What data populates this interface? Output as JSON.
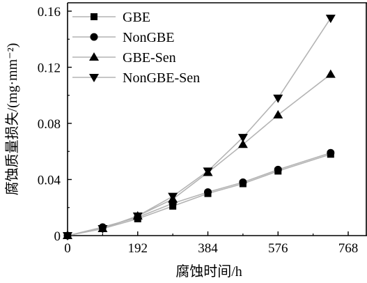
{
  "chart_data": {
    "type": "line",
    "title": "",
    "xlabel": "腐蚀时间/h",
    "ylabel": "腐蚀质量损失/(mg·mm⁻²)",
    "xlim": [
      0,
      768
    ],
    "ylim": [
      0,
      0.16
    ],
    "xticks": [
      0,
      192,
      384,
      576,
      768
    ],
    "xtick_labels": [
      "0",
      "192",
      "384",
      "576",
      "768"
    ],
    "yticks": [
      0,
      0.04,
      0.08,
      0.12,
      0.16
    ],
    "ytick_labels": [
      "0",
      "0.04",
      "0.08",
      "0.12",
      "0.16"
    ],
    "grid": false,
    "legend_position": "top-left",
    "line_color": "#b4b4b4",
    "marker_color": "#000000",
    "x": [
      0,
      96,
      192,
      288,
      384,
      480,
      576,
      720
    ],
    "series": [
      {
        "name": "GBE",
        "marker": "square",
        "values": [
          0,
          0.005,
          0.012,
          0.021,
          0.03,
          0.037,
          0.046,
          0.058
        ]
      },
      {
        "name": "NonGBE",
        "marker": "circle",
        "values": [
          0,
          0.006,
          0.013,
          0.023,
          0.031,
          0.038,
          0.047,
          0.059
        ]
      },
      {
        "name": "GBE-Sen",
        "marker": "triangle-up",
        "values": [
          0,
          0.005,
          0.014,
          0.026,
          0.045,
          0.065,
          0.086,
          0.115
        ]
      },
      {
        "name": "NonGBE-Sen",
        "marker": "triangle-down",
        "values": [
          0,
          0.005,
          0.014,
          0.028,
          0.046,
          0.07,
          0.098,
          0.155
        ]
      }
    ]
  }
}
